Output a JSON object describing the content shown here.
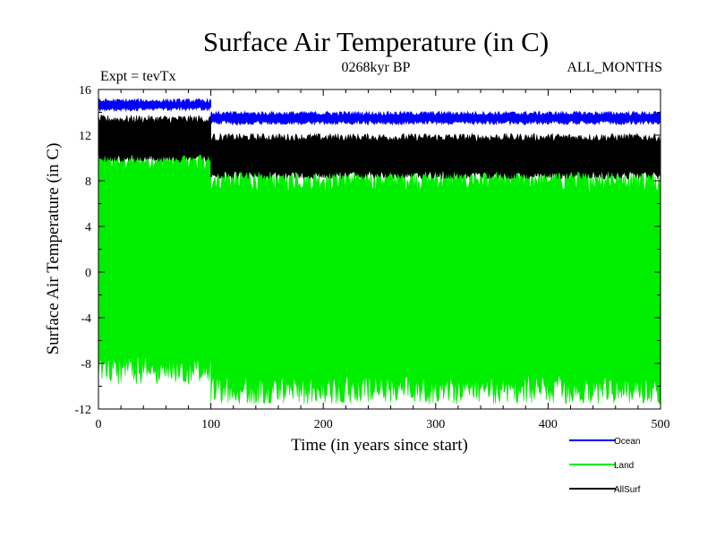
{
  "chart_data": {
    "type": "area",
    "title": "Surface Air Temperature (in C)",
    "subtitle_left": "Expt = tevTx",
    "subtitle_center": "0268kyr BP",
    "subtitle_right": "ALL_MONTHS",
    "xlabel": "Time (in years since start)",
    "ylabel": "Surface Air Temperature (in C)",
    "xlim": [
      0,
      500
    ],
    "ylim": [
      -12,
      16
    ],
    "xticks": [
      0,
      100,
      200,
      300,
      400,
      500
    ],
    "yticks": [
      -12,
      -8,
      -4,
      0,
      4,
      8,
      12,
      16
    ],
    "legend_position": "bottom-right",
    "series": [
      {
        "name": "Ocean",
        "color": "#0000ff",
        "segments": [
          {
            "x": [
              0,
              100
            ],
            "upper": 15.0,
            "lower": 14.3
          },
          {
            "x": [
              100,
              500
            ],
            "upper": 13.9,
            "lower": 13.1
          }
        ]
      },
      {
        "name": "Land",
        "color": "#00ee00",
        "segments": [
          {
            "x": [
              0,
              100
            ],
            "upper": 10.0,
            "lower": -8.6
          },
          {
            "x": [
              100,
              500
            ],
            "upper": 8.3,
            "lower": -10.3
          }
        ]
      },
      {
        "name": "AllSurf",
        "color": "#000000",
        "segments": [
          {
            "x": [
              0,
              100
            ],
            "upper": 13.4,
            "lower": 10.0
          },
          {
            "x": [
              100,
              500
            ],
            "upper": 11.8,
            "lower": 8.5
          }
        ]
      }
    ]
  }
}
